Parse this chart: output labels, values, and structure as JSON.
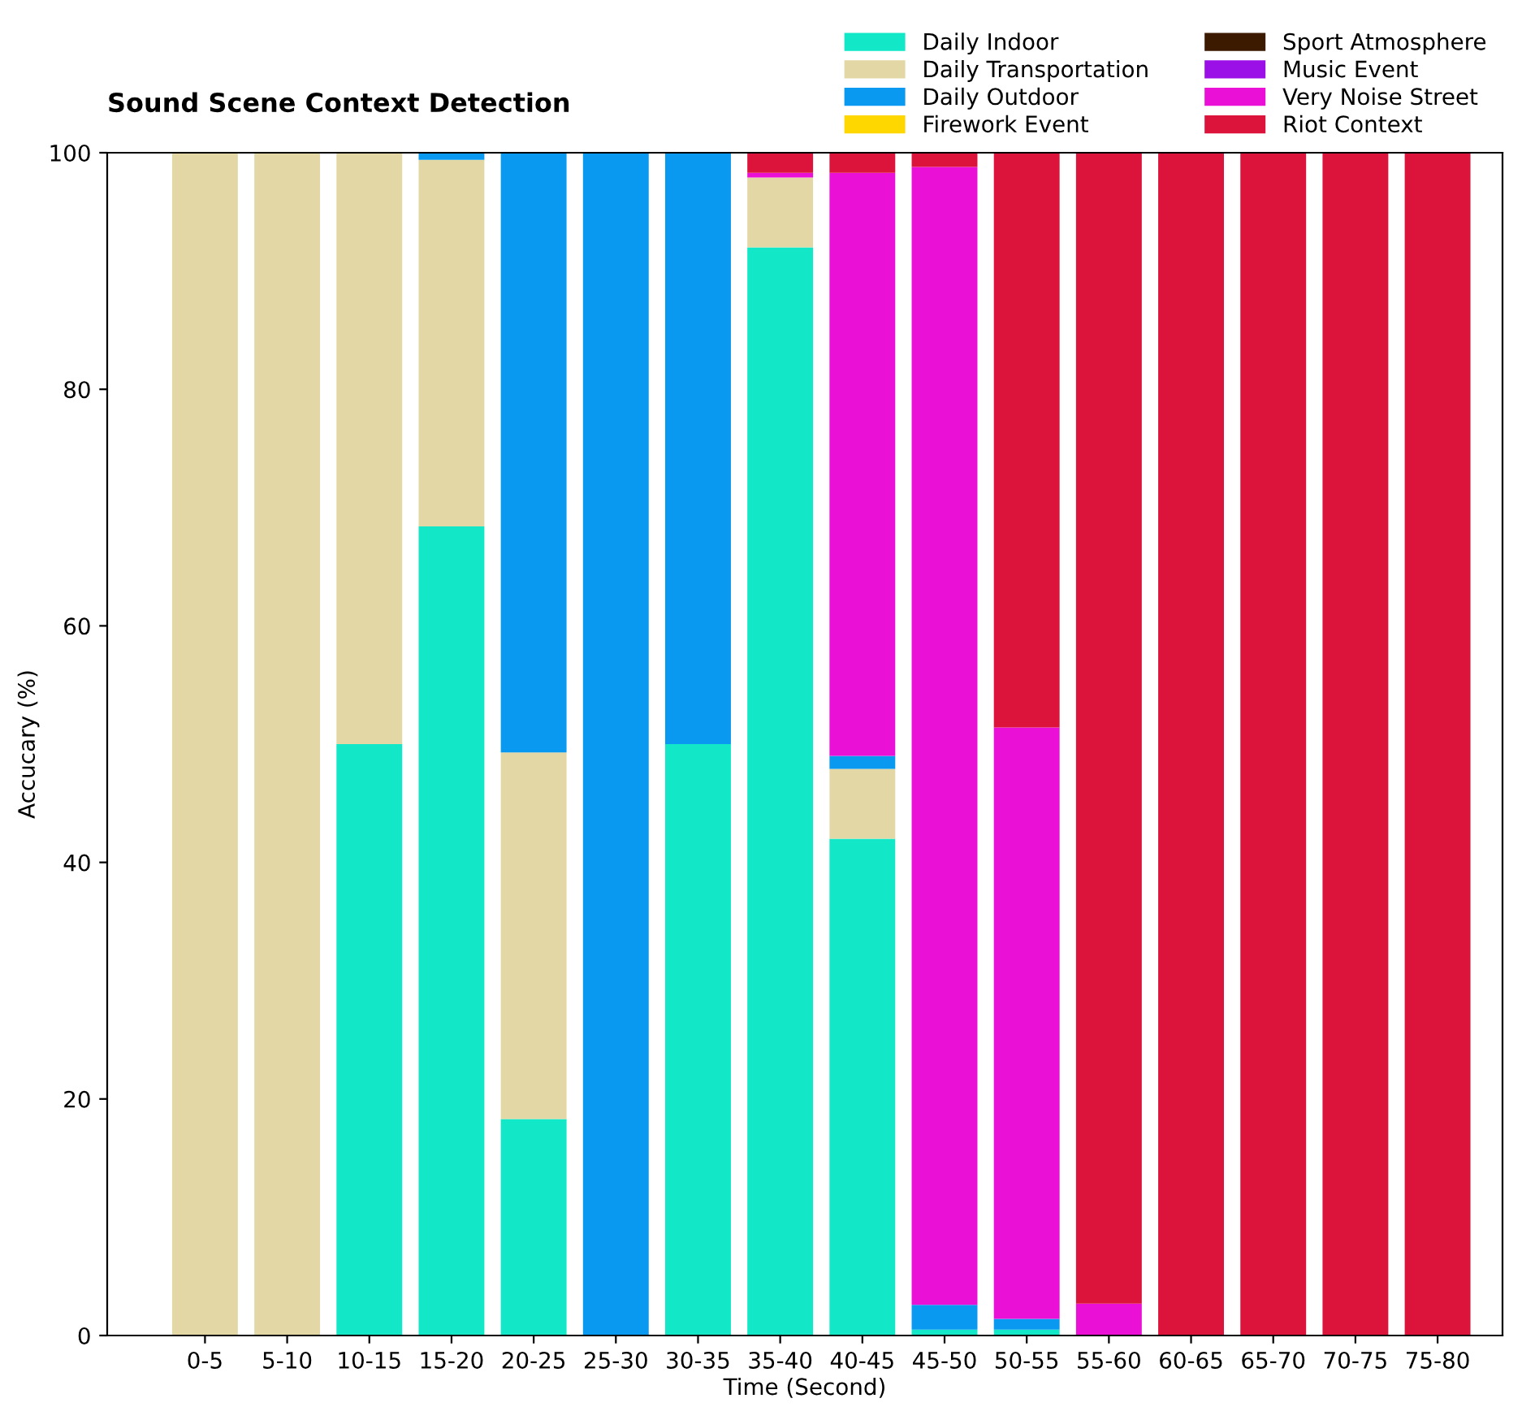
{
  "chart_data": {
    "type": "bar",
    "title": "Sound Scene Context Detection",
    "xlabel": "Time (Second)",
    "ylabel": "Accucary (%)",
    "categories": [
      "0-5",
      "5-10",
      "10-15",
      "15-20",
      "20-25",
      "25-30",
      "30-35",
      "35-40",
      "40-45",
      "45-50",
      "50-55",
      "55-60",
      "60-65",
      "65-70",
      "70-75",
      "75-80"
    ],
    "stacked": true,
    "ylim": [
      0,
      100
    ],
    "yticks": [
      0,
      20,
      40,
      60,
      80,
      100
    ],
    "grid": false,
    "legend": "top right",
    "series": [
      {
        "name": "Daily Indoor",
        "color": "#12e8c8",
        "values": [
          0,
          0,
          50,
          68.4,
          18.3,
          0,
          50,
          92,
          42,
          0.5,
          0.5,
          0,
          0,
          0,
          0,
          0
        ]
      },
      {
        "name": "Daily Transportation",
        "color": "#e3d8a5",
        "values": [
          100,
          100,
          50,
          31,
          31,
          0,
          0,
          5.9,
          5.9,
          0,
          0,
          0,
          0,
          0,
          0,
          0
        ]
      },
      {
        "name": "Daily Outdoor",
        "color": "#0a99f0",
        "values": [
          0,
          0,
          0,
          0.6,
          50.7,
          100,
          50,
          0,
          1.1,
          2.1,
          0.9,
          0,
          0,
          0,
          0,
          0
        ]
      },
      {
        "name": "Firework Event",
        "color": "#ffd700",
        "values": [
          0,
          0,
          0,
          0,
          0,
          0,
          0,
          0,
          0,
          0,
          0,
          0,
          0,
          0,
          0,
          0
        ]
      },
      {
        "name": "Sport Atmosphere",
        "color": "#3c1a00",
        "values": [
          0,
          0,
          0,
          0,
          0,
          0,
          0,
          0,
          0,
          0,
          0,
          0,
          0,
          0,
          0,
          0
        ]
      },
      {
        "name": "Music Event",
        "color": "#9b10e6",
        "values": [
          0,
          0,
          0,
          0,
          0,
          0,
          0,
          0,
          0,
          0,
          0,
          0,
          0,
          0,
          0,
          0
        ]
      },
      {
        "name": "Very Noise Street",
        "color": "#eb10d6",
        "values": [
          0,
          0,
          0,
          0,
          0,
          0,
          0,
          0.4,
          49.3,
          96.2,
          50,
          2.7,
          0,
          0,
          0,
          0
        ]
      },
      {
        "name": "Riot Context",
        "color": "#dc143c",
        "values": [
          0,
          0,
          0,
          0,
          0,
          0,
          0,
          1.7,
          1.7,
          1.2,
          48.6,
          97.3,
          100,
          100,
          100,
          100
        ]
      }
    ]
  }
}
